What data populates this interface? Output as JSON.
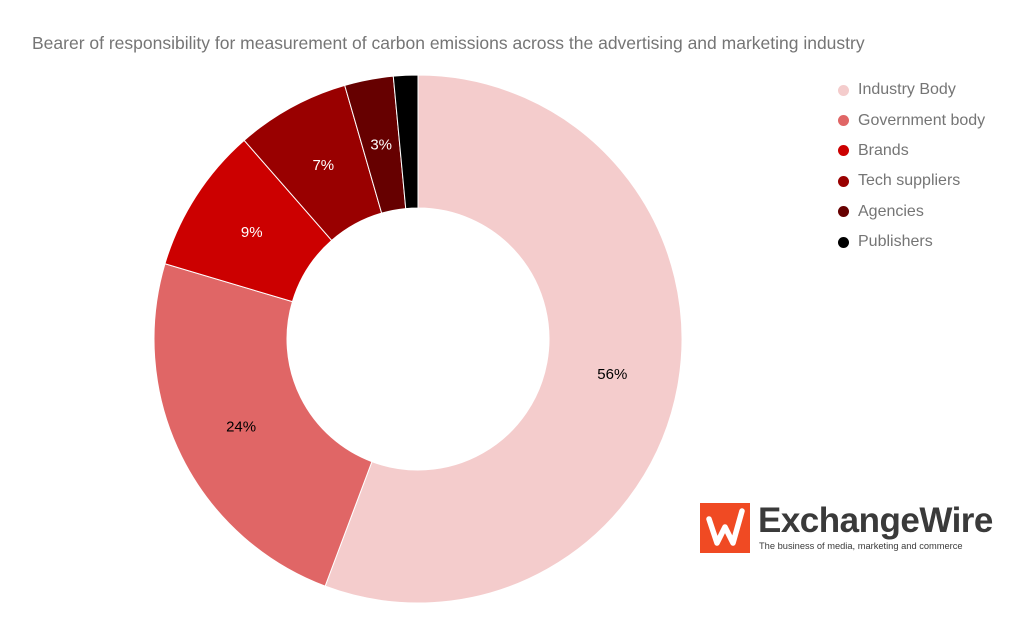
{
  "chart_data": {
    "type": "pie",
    "variant": "donut",
    "title": "Bearer of responsibility for measurement of carbon emissions across the advertising and marketing industry",
    "categories": [
      "Industry Body",
      "Government body",
      "Brands",
      "Tech suppliers",
      "Agencies",
      "Publishers"
    ],
    "values": [
      56,
      24,
      9,
      7,
      3,
      1.5
    ],
    "data_labels": [
      "56%",
      "24%",
      "9%",
      "7%",
      "3%",
      ""
    ],
    "colors": [
      "#f4cccc",
      "#e06666",
      "#cc0000",
      "#990000",
      "#660000",
      "#000000"
    ],
    "label_colors": [
      "#000000",
      "#000000",
      "#ffffff",
      "#ffffff",
      "#ffffff",
      "#ffffff"
    ],
    "legend_position": "right"
  },
  "brand": {
    "name": "ExchangeWire",
    "tagline": "The business of media, marketing and commerce",
    "color": "#f04a23"
  }
}
